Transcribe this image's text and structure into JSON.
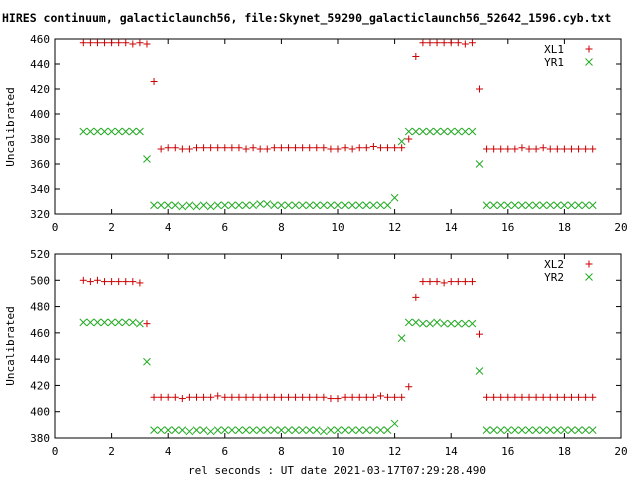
{
  "figure": {
    "title": "HIRES continuum, galacticlaunch56, file:Skynet_59290_galacticlaunch56_52642_1596.cyb.txt",
    "xlabel": "rel seconds : UT date 2021-03-17T07:29:28.490"
  },
  "chart_data": [
    {
      "type": "scatter",
      "ylabel": "Uncalibrated",
      "xlim": [
        0,
        20
      ],
      "ylim": [
        320,
        460
      ],
      "xticks": [
        0,
        2,
        4,
        6,
        8,
        10,
        12,
        14,
        16,
        18,
        20
      ],
      "yticks": [
        320,
        340,
        360,
        380,
        400,
        420,
        440,
        460
      ],
      "legend_position": "top-right",
      "series": [
        {
          "name": "XL1",
          "marker": "plus",
          "color": "#cc0000",
          "x": [
            1.0,
            1.25,
            1.5,
            1.75,
            2.0,
            2.25,
            2.5,
            2.75,
            3.0,
            3.25,
            3.5,
            3.75,
            4.0,
            4.25,
            4.5,
            4.75,
            5.0,
            5.25,
            5.5,
            5.75,
            6.0,
            6.25,
            6.5,
            6.75,
            7.0,
            7.25,
            7.5,
            7.75,
            8.0,
            8.25,
            8.5,
            8.75,
            9.0,
            9.25,
            9.5,
            9.75,
            10.0,
            10.25,
            10.5,
            10.75,
            11.0,
            11.25,
            11.5,
            11.75,
            12.0,
            12.25,
            12.5,
            12.75,
            13.0,
            13.25,
            13.5,
            13.75,
            14.0,
            14.25,
            14.5,
            14.75,
            15.0,
            15.25,
            15.5,
            15.75,
            16.0,
            16.25,
            16.5,
            16.75,
            17.0,
            17.25,
            17.5,
            17.75,
            18.0,
            18.25,
            18.5,
            18.75,
            19.0
          ],
          "y": [
            457,
            457,
            457,
            457,
            457,
            457,
            457,
            456,
            457,
            456,
            426,
            372,
            373,
            373,
            372,
            372,
            373,
            373,
            373,
            373,
            373,
            373,
            373,
            372,
            373,
            372,
            372,
            373,
            373,
            373,
            373,
            373,
            373,
            373,
            373,
            372,
            372,
            373,
            372,
            373,
            373,
            374,
            373,
            373,
            373,
            373,
            380,
            446,
            457,
            457,
            457,
            457,
            457,
            457,
            456,
            457,
            420,
            372,
            372,
            372,
            372,
            372,
            373,
            372,
            372,
            373,
            372,
            372,
            372,
            372,
            372,
            372,
            372
          ]
        },
        {
          "name": "YR1",
          "marker": "cross",
          "color": "#22aa22",
          "x": [
            1.0,
            1.25,
            1.5,
            1.75,
            2.0,
            2.25,
            2.5,
            2.75,
            3.0,
            3.25,
            3.5,
            3.75,
            4.0,
            4.25,
            4.5,
            4.75,
            5.0,
            5.25,
            5.5,
            5.75,
            6.0,
            6.25,
            6.5,
            6.75,
            7.0,
            7.25,
            7.5,
            7.75,
            8.0,
            8.25,
            8.5,
            8.75,
            9.0,
            9.25,
            9.5,
            9.75,
            10.0,
            10.25,
            10.5,
            10.75,
            11.0,
            11.25,
            11.5,
            11.75,
            12.0,
            12.25,
            12.5,
            12.75,
            13.0,
            13.25,
            13.5,
            13.75,
            14.0,
            14.25,
            14.5,
            14.75,
            15.0,
            15.25,
            15.5,
            15.75,
            16.0,
            16.25,
            16.5,
            16.75,
            17.0,
            17.25,
            17.5,
            17.75,
            18.0,
            18.25,
            18.5,
            18.75,
            19.0
          ],
          "y": [
            386,
            386,
            386,
            386,
            386,
            386,
            386,
            386,
            386,
            364,
            327,
            327,
            327,
            327,
            326,
            327,
            326,
            327,
            326,
            327,
            327,
            327,
            327,
            327,
            327,
            328,
            328,
            327,
            327,
            327,
            327,
            327,
            327,
            327,
            327,
            327,
            327,
            327,
            327,
            327,
            327,
            327,
            327,
            327,
            333,
            378,
            386,
            386,
            386,
            386,
            386,
            386,
            386,
            386,
            386,
            386,
            360,
            327,
            327,
            327,
            327,
            327,
            327,
            327,
            327,
            327,
            327,
            327,
            327,
            327,
            327,
            327,
            327
          ]
        }
      ]
    },
    {
      "type": "scatter",
      "ylabel": "Uncalibrated",
      "xlim": [
        0,
        20
      ],
      "ylim": [
        380,
        520
      ],
      "xticks": [
        0,
        2,
        4,
        6,
        8,
        10,
        12,
        14,
        16,
        18,
        20
      ],
      "yticks": [
        380,
        400,
        420,
        440,
        460,
        480,
        500,
        520
      ],
      "legend_position": "top-right",
      "series": [
        {
          "name": "XL2",
          "marker": "plus",
          "color": "#cc0000",
          "x": [
            1.0,
            1.25,
            1.5,
            1.75,
            2.0,
            2.25,
            2.5,
            2.75,
            3.0,
            3.25,
            3.5,
            3.75,
            4.0,
            4.25,
            4.5,
            4.75,
            5.0,
            5.25,
            5.5,
            5.75,
            6.0,
            6.25,
            6.5,
            6.75,
            7.0,
            7.25,
            7.5,
            7.75,
            8.0,
            8.25,
            8.5,
            8.75,
            9.0,
            9.25,
            9.5,
            9.75,
            10.0,
            10.25,
            10.5,
            10.75,
            11.0,
            11.25,
            11.5,
            11.75,
            12.0,
            12.25,
            12.5,
            12.75,
            13.0,
            13.25,
            13.5,
            13.75,
            14.0,
            14.25,
            14.5,
            14.75,
            15.0,
            15.25,
            15.5,
            15.75,
            16.0,
            16.25,
            16.5,
            16.75,
            17.0,
            17.25,
            17.5,
            17.75,
            18.0,
            18.25,
            18.5,
            18.75,
            19.0
          ],
          "y": [
            500,
            499,
            500,
            499,
            499,
            499,
            499,
            499,
            498,
            467,
            411,
            411,
            411,
            411,
            410,
            411,
            411,
            411,
            411,
            412,
            411,
            411,
            411,
            411,
            411,
            411,
            411,
            411,
            411,
            411,
            411,
            411,
            411,
            411,
            411,
            410,
            410,
            411,
            411,
            411,
            411,
            411,
            412,
            411,
            411,
            411,
            419,
            487,
            499,
            499,
            499,
            498,
            499,
            499,
            499,
            499,
            459,
            411,
            411,
            411,
            411,
            411,
            411,
            411,
            411,
            411,
            411,
            411,
            411,
            411,
            411,
            411,
            411
          ]
        },
        {
          "name": "YR2",
          "marker": "cross",
          "color": "#22aa22",
          "x": [
            1.0,
            1.25,
            1.5,
            1.75,
            2.0,
            2.25,
            2.5,
            2.75,
            3.0,
            3.25,
            3.5,
            3.75,
            4.0,
            4.25,
            4.5,
            4.75,
            5.0,
            5.25,
            5.5,
            5.75,
            6.0,
            6.25,
            6.5,
            6.75,
            7.0,
            7.25,
            7.5,
            7.75,
            8.0,
            8.25,
            8.5,
            8.75,
            9.0,
            9.25,
            9.5,
            9.75,
            10.0,
            10.25,
            10.5,
            10.75,
            11.0,
            11.25,
            11.5,
            11.75,
            12.0,
            12.25,
            12.5,
            12.75,
            13.0,
            13.25,
            13.5,
            13.75,
            14.0,
            14.25,
            14.5,
            14.75,
            15.0,
            15.25,
            15.5,
            15.75,
            16.0,
            16.25,
            16.5,
            16.75,
            17.0,
            17.25,
            17.5,
            17.75,
            18.0,
            18.25,
            18.5,
            18.75,
            19.0
          ],
          "y": [
            468,
            468,
            468,
            468,
            468,
            468,
            468,
            468,
            467,
            438,
            386,
            386,
            386,
            386,
            386,
            385,
            386,
            386,
            385,
            386,
            386,
            386,
            386,
            386,
            386,
            386,
            386,
            386,
            386,
            386,
            386,
            386,
            386,
            386,
            385,
            386,
            386,
            386,
            386,
            386,
            386,
            386,
            386,
            386,
            391,
            456,
            468,
            468,
            467,
            467,
            468,
            467,
            467,
            467,
            467,
            467,
            431,
            386,
            386,
            386,
            386,
            386,
            386,
            386,
            386,
            386,
            386,
            386,
            386,
            386,
            386,
            386,
            386
          ]
        }
      ]
    }
  ]
}
